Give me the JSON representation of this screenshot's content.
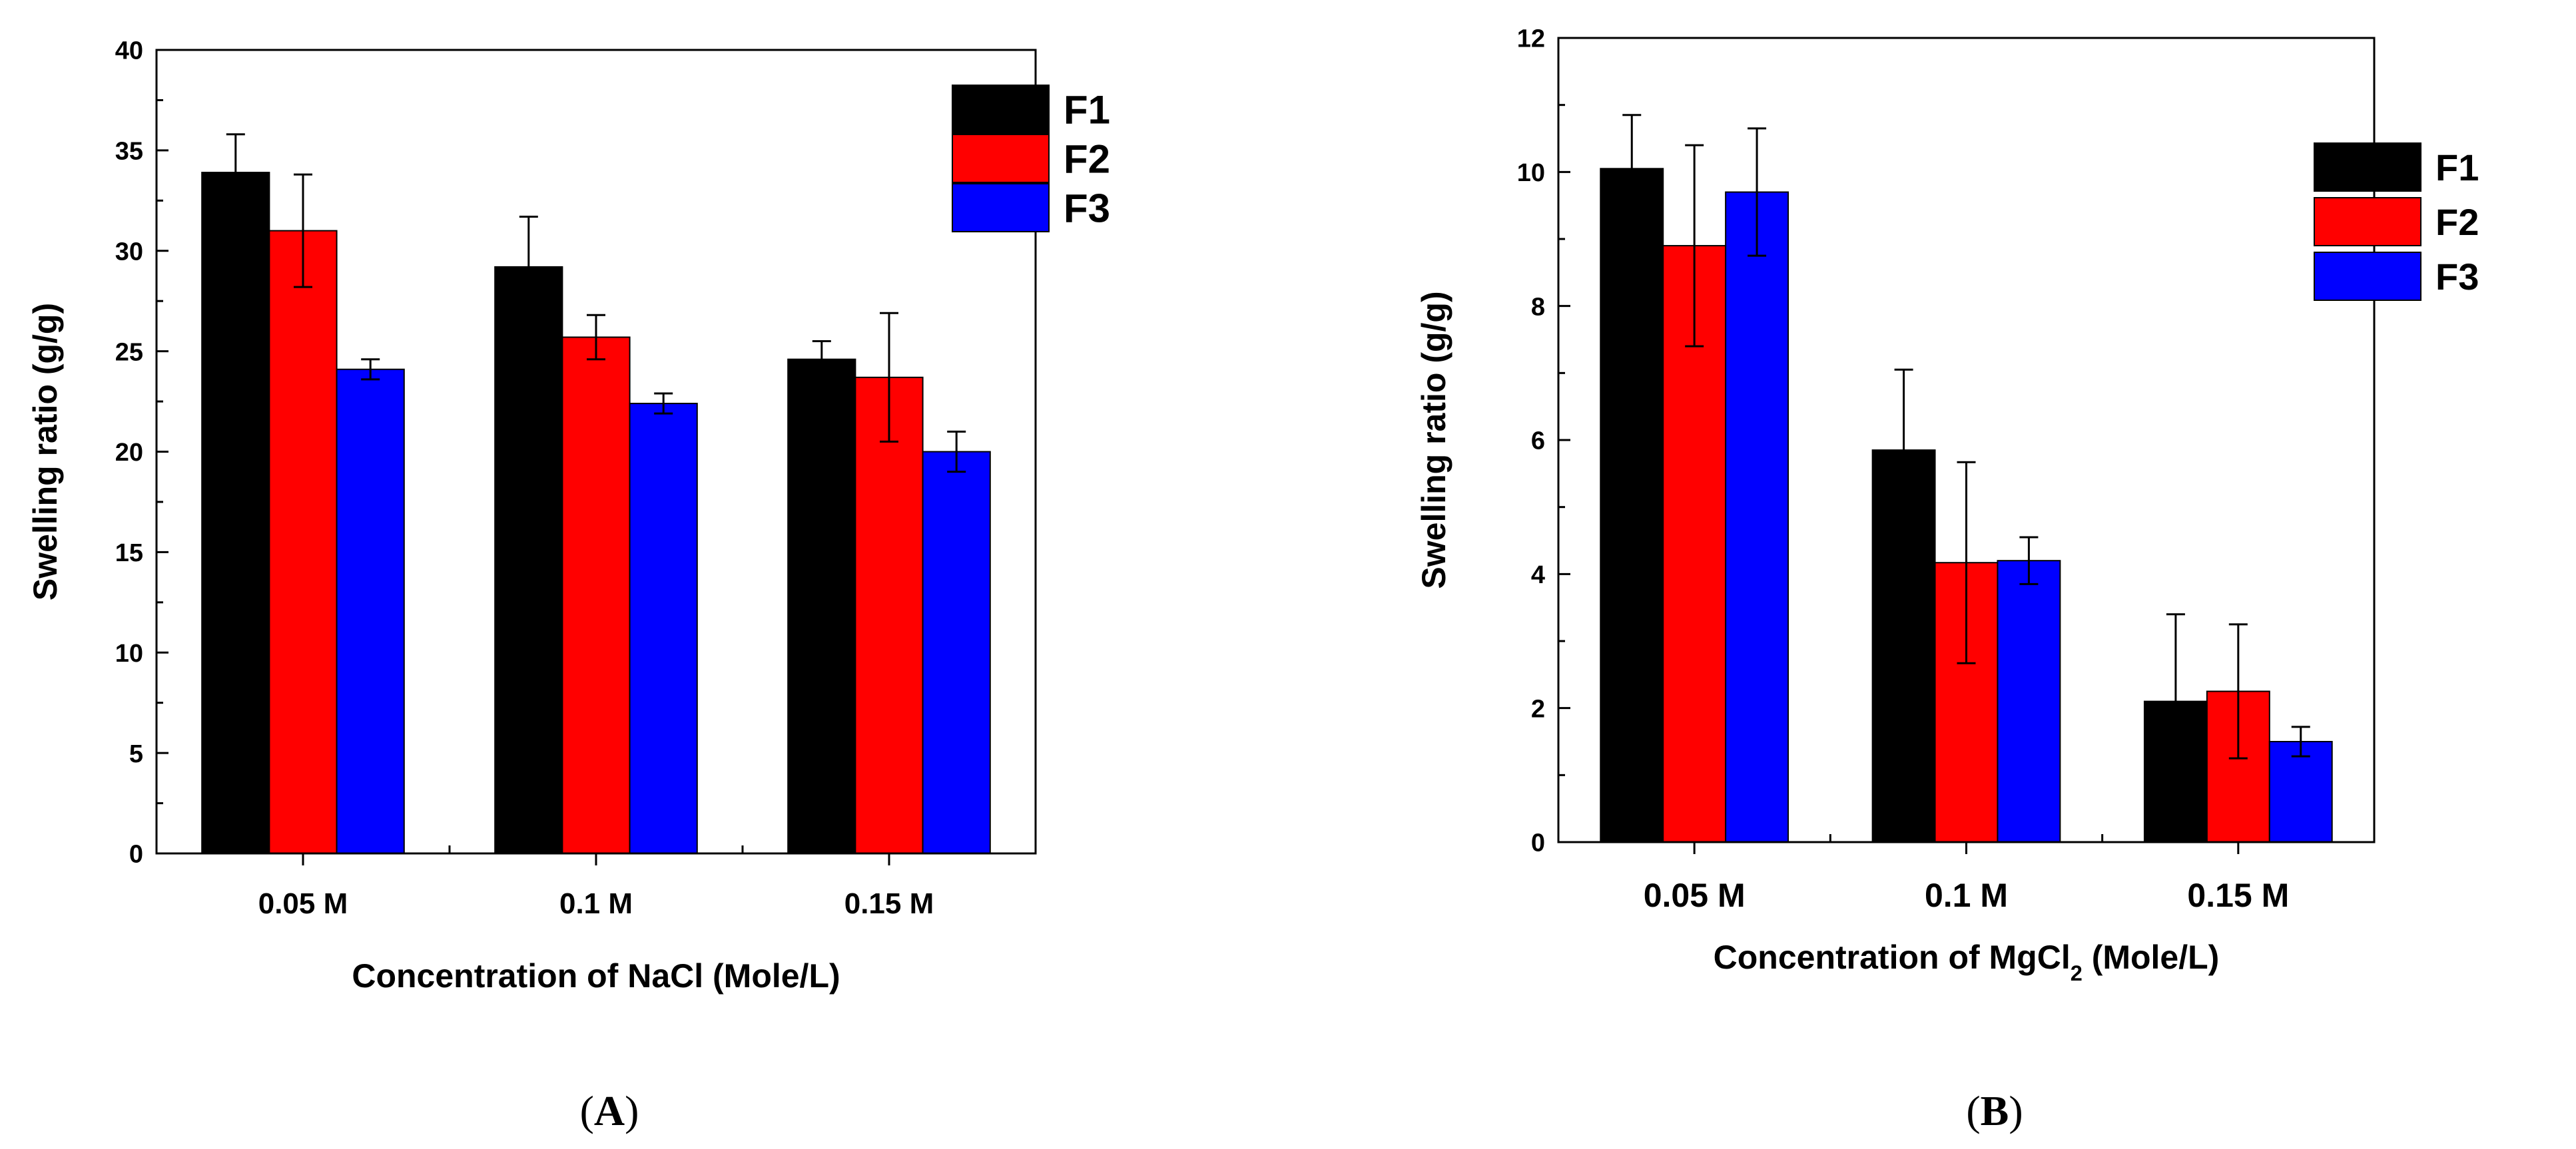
{
  "chart_data": [
    {
      "type": "bar",
      "panel_label": "(A)",
      "xlabel": "Concentration of NaCl (Mole/L)",
      "ylabel": "Swelling ratio (g/g)",
      "ylim": [
        0,
        40
      ],
      "yticks": [
        "0",
        "5",
        "10",
        "15",
        "20",
        "25",
        "30",
        "35",
        "40"
      ],
      "categories": [
        "0.05 M",
        "0.1 M",
        "0.15 M"
      ],
      "legend_position": "top-right",
      "grid": false,
      "series": [
        {
          "name": "F1",
          "color": "#000000",
          "values": [
            33.9,
            29.2,
            24.6
          ],
          "errors": [
            1.9,
            2.5,
            0.9
          ]
        },
        {
          "name": "F2",
          "color": "#ff0000",
          "values": [
            31.0,
            25.7,
            23.7
          ],
          "errors": [
            2.8,
            1.1,
            3.2
          ]
        },
        {
          "name": "F3",
          "color": "#0000ff",
          "values": [
            24.1,
            22.4,
            20.0
          ],
          "errors": [
            0.5,
            0.5,
            1.0
          ]
        }
      ]
    },
    {
      "type": "bar",
      "panel_label": "(B)",
      "xlabel_main": "Concentration of MgCl",
      "xlabel_sub": "2",
      "xlabel_tail": " (Mole/L)",
      "ylabel": "Swelling ratio (g/g)",
      "ylim": [
        0,
        12
      ],
      "yticks": [
        "0",
        "2",
        "4",
        "6",
        "8",
        "10",
        "12"
      ],
      "categories": [
        "0.05 M",
        "0.1 M",
        "0.15 M"
      ],
      "legend_position": "top-right",
      "grid": false,
      "series": [
        {
          "name": "F1",
          "color": "#000000",
          "values": [
            10.05,
            5.85,
            2.1
          ],
          "errors": [
            0.8,
            1.2,
            1.3
          ]
        },
        {
          "name": "F2",
          "color": "#ff0000",
          "values": [
            8.9,
            4.17,
            2.25
          ],
          "errors": [
            1.5,
            1.5,
            1.0
          ]
        },
        {
          "name": "F3",
          "color": "#0000ff",
          "values": [
            9.7,
            4.2,
            1.5
          ],
          "errors": [
            0.95,
            0.35,
            0.22
          ]
        }
      ]
    }
  ]
}
